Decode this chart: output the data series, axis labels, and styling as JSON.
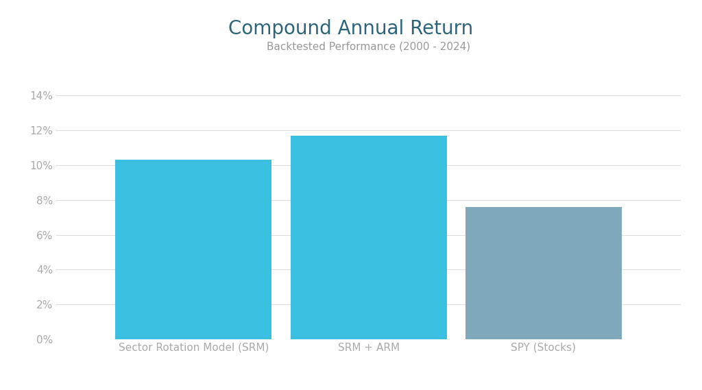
{
  "title": "Compound Annual Return",
  "subtitle": "Backtested Performance (2000 - 2024)",
  "categories": [
    "Sector Rotation Model (SRM)",
    "SRM + ARM",
    "SPY (Stocks)"
  ],
  "values": [
    0.103,
    0.117,
    0.076
  ],
  "bar_colors": [
    "#3bbfe0",
    "#3bbfe0",
    "#7fa8bb"
  ],
  "title_color": "#2d6478",
  "subtitle_color": "#999999",
  "tick_label_color": "#aaaaaa",
  "xlabel_color": "#aaaaaa",
  "grid_color": "#dddddd",
  "background_color": "#ffffff",
  "title_fontsize": 20,
  "subtitle_fontsize": 11,
  "tick_fontsize": 11,
  "xlabel_fontsize": 11,
  "ylim": [
    0,
    0.15
  ],
  "yticks": [
    0,
    0.02,
    0.04,
    0.06,
    0.08,
    0.1,
    0.12,
    0.14
  ],
  "bar_width": 0.25,
  "bar_positions": [
    0.22,
    0.5,
    0.78
  ]
}
